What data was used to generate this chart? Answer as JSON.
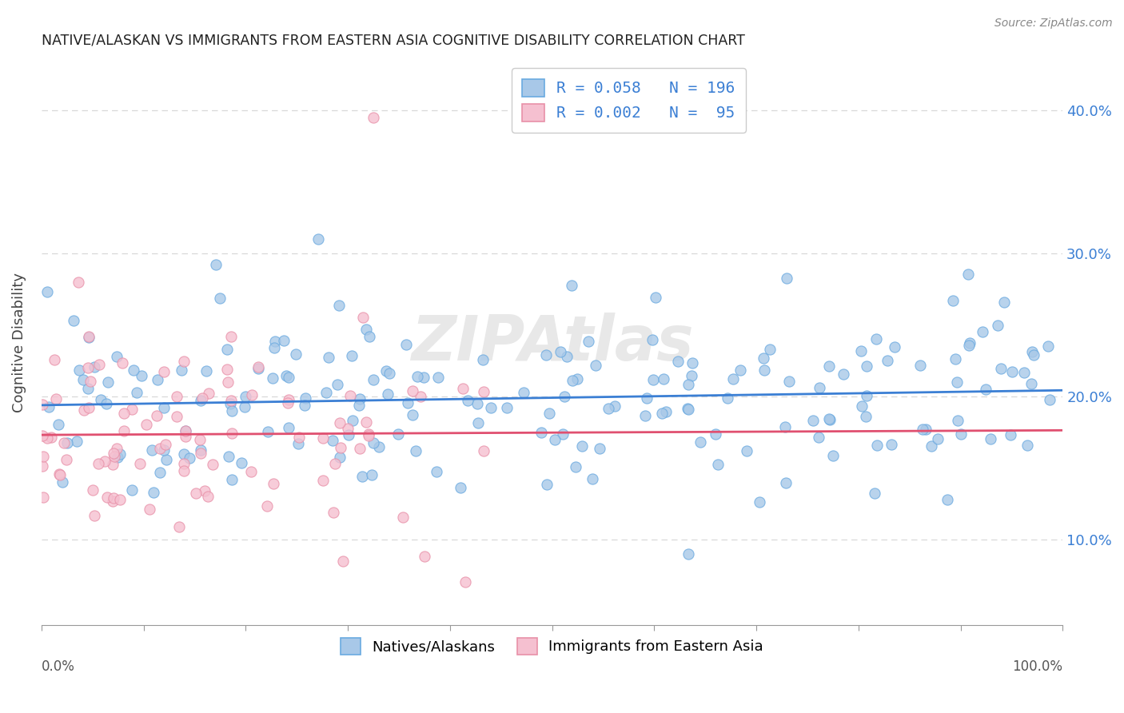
{
  "title": "NATIVE/ALASKAN VS IMMIGRANTS FROM EASTERN ASIA COGNITIVE DISABILITY CORRELATION CHART",
  "source": "Source: ZipAtlas.com",
  "ylabel": "Cognitive Disability",
  "yticks": [
    0.1,
    0.2,
    0.3,
    0.4
  ],
  "ytick_labels": [
    "10.0%",
    "20.0%",
    "30.0%",
    "40.0%"
  ],
  "xlim": [
    0.0,
    1.0
  ],
  "ylim": [
    0.04,
    0.435
  ],
  "series1_color": "#a8c8e8",
  "series1_edge_color": "#6aaae0",
  "series1_line_color": "#3b7fd4",
  "series1_label": "Natives/Alaskans",
  "series1_R": "0.058",
  "series1_N": "196",
  "series2_color": "#f5c0d0",
  "series2_edge_color": "#e890a8",
  "series2_line_color": "#e05070",
  "series2_label": "Immigrants from Eastern Asia",
  "series2_R": "0.002",
  "series2_N": "95",
  "watermark": "ZIPAtlas",
  "background_color": "#ffffff",
  "grid_color": "#d8d8d8",
  "title_color": "#222222",
  "legend_text_color": "#3b7fd4",
  "right_axis_color": "#3b7fd4",
  "n1": 196,
  "n2": 95,
  "seed1": 42,
  "seed2": 123
}
